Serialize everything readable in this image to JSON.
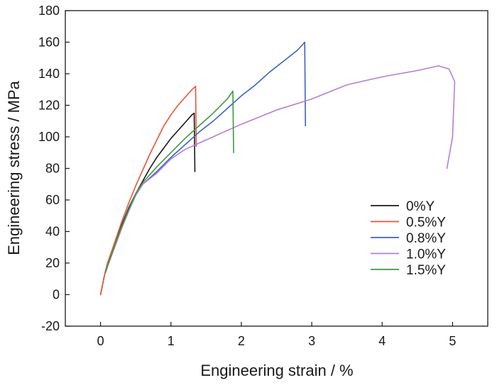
{
  "chart_data": {
    "type": "line",
    "title": "",
    "xlabel": "Engineering strain / %",
    "ylabel": "Engineering stress / MPa",
    "xlim": [
      -0.5,
      5.5
    ],
    "ylim": [
      -20,
      180
    ],
    "x_ticks": [
      "0",
      "1",
      "2",
      "3",
      "4",
      "5"
    ],
    "y_ticks": [
      "-20",
      "0",
      "20",
      "40",
      "60",
      "80",
      "100",
      "120",
      "140",
      "160",
      "180"
    ],
    "x_tick_values": [
      0,
      1,
      2,
      3,
      4,
      5
    ],
    "y_tick_values": [
      -20,
      0,
      20,
      40,
      60,
      80,
      100,
      120,
      140,
      160,
      180
    ],
    "grid": false,
    "legend_position": "bottom-right",
    "series": [
      {
        "name": "0%Y",
        "color": "#1a1a1a",
        "points": [
          [
            0,
            0
          ],
          [
            0.06,
            13
          ],
          [
            0.1,
            20
          ],
          [
            0.2,
            32
          ],
          [
            0.3,
            44
          ],
          [
            0.4,
            55
          ],
          [
            0.5,
            64
          ],
          [
            0.6,
            72
          ],
          [
            0.7,
            80
          ],
          [
            0.8,
            87
          ],
          [
            0.9,
            93
          ],
          [
            1.0,
            99
          ],
          [
            1.1,
            104
          ],
          [
            1.2,
            109
          ],
          [
            1.3,
            114
          ],
          [
            1.33,
            115
          ],
          [
            1.34,
            78
          ]
        ]
      },
      {
        "name": "0.5%Y",
        "color": "#e8553a",
        "points": [
          [
            0,
            0
          ],
          [
            0.06,
            13
          ],
          [
            0.1,
            20
          ],
          [
            0.2,
            33
          ],
          [
            0.3,
            46
          ],
          [
            0.4,
            58
          ],
          [
            0.5,
            69
          ],
          [
            0.6,
            79
          ],
          [
            0.7,
            89
          ],
          [
            0.8,
            98
          ],
          [
            0.9,
            107
          ],
          [
            1.0,
            114
          ],
          [
            1.1,
            120
          ],
          [
            1.2,
            125
          ],
          [
            1.3,
            130
          ],
          [
            1.35,
            132
          ],
          [
            1.36,
            94
          ]
        ]
      },
      {
        "name": "0.8%Y",
        "color": "#3a63c4",
        "points": [
          [
            0.07,
            14
          ],
          [
            0.1,
            18
          ],
          [
            0.2,
            30
          ],
          [
            0.3,
            42
          ],
          [
            0.4,
            53
          ],
          [
            0.5,
            63
          ],
          [
            0.6,
            70
          ],
          [
            0.8,
            78
          ],
          [
            1.0,
            87
          ],
          [
            1.2,
            95
          ],
          [
            1.4,
            103
          ],
          [
            1.6,
            110
          ],
          [
            1.8,
            118
          ],
          [
            2.0,
            126
          ],
          [
            2.2,
            133
          ],
          [
            2.4,
            141
          ],
          [
            2.6,
            148
          ],
          [
            2.8,
            155
          ],
          [
            2.9,
            160
          ],
          [
            2.91,
            107
          ]
        ]
      },
      {
        "name": "1.0%Y",
        "color": "#b37fd6",
        "points": [
          [
            0.07,
            14
          ],
          [
            0.1,
            18
          ],
          [
            0.2,
            30
          ],
          [
            0.3,
            42
          ],
          [
            0.4,
            53
          ],
          [
            0.5,
            63
          ],
          [
            0.6,
            70
          ],
          [
            0.8,
            77
          ],
          [
            1.0,
            86
          ],
          [
            1.2,
            92
          ],
          [
            1.5,
            98
          ],
          [
            2.0,
            108
          ],
          [
            2.5,
            117
          ],
          [
            3.0,
            124
          ],
          [
            3.5,
            133
          ],
          [
            4.0,
            138
          ],
          [
            4.5,
            142
          ],
          [
            4.8,
            145
          ],
          [
            4.95,
            143
          ],
          [
            5.03,
            135
          ],
          [
            5.0,
            100
          ],
          [
            4.92,
            80
          ]
        ]
      },
      {
        "name": "1.5%Y",
        "color": "#3f9a3f",
        "points": [
          [
            0.07,
            14
          ],
          [
            0.1,
            18
          ],
          [
            0.2,
            31
          ],
          [
            0.3,
            43
          ],
          [
            0.4,
            54
          ],
          [
            0.5,
            64
          ],
          [
            0.6,
            71
          ],
          [
            0.8,
            81
          ],
          [
            1.0,
            90
          ],
          [
            1.2,
            99
          ],
          [
            1.4,
            107
          ],
          [
            1.6,
            115
          ],
          [
            1.8,
            124
          ],
          [
            1.88,
            129
          ],
          [
            1.89,
            90
          ]
        ]
      }
    ]
  }
}
